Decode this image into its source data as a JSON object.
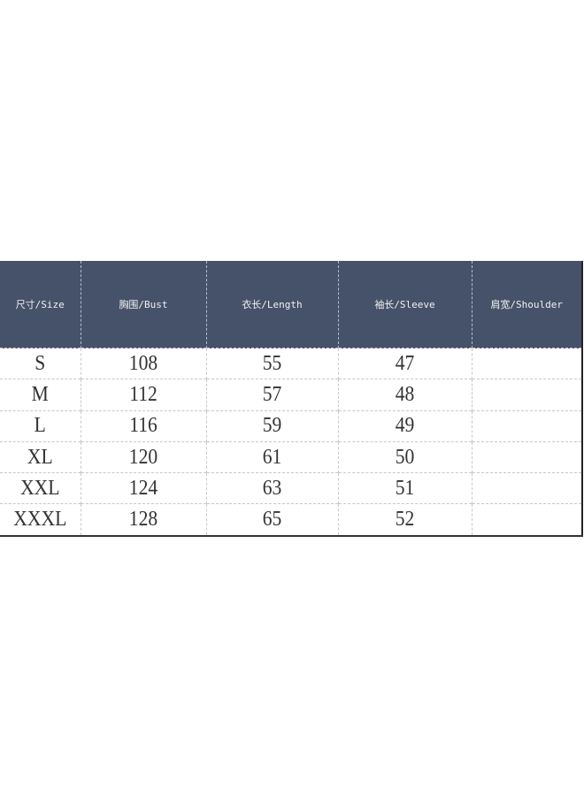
{
  "table": {
    "headers": [
      "尺寸/Size",
      "胸围/Bust",
      "衣长/Length",
      "袖长/Sleeve",
      "肩宽/Shoulder"
    ],
    "rows": [
      [
        "S",
        "108",
        "55",
        "47",
        ""
      ],
      [
        "M",
        "112",
        "57",
        "48",
        ""
      ],
      [
        "L",
        "116",
        "59",
        "49",
        ""
      ],
      [
        "XL",
        "120",
        "61",
        "50",
        ""
      ],
      [
        "XXL",
        "124",
        "63",
        "51",
        ""
      ],
      [
        "XXXL",
        "128",
        "65",
        "52",
        ""
      ]
    ],
    "header_color": "#46526a"
  }
}
